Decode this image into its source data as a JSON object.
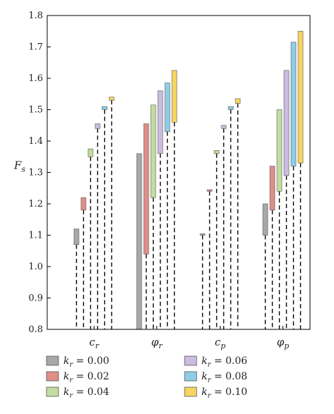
{
  "chart_data": {
    "type": "bar",
    "subtype": "floating-range-bars-with-dashed-drop-lines",
    "ylabel": "F_s",
    "ylim": [
      0.8,
      1.8
    ],
    "yticks": [
      "0.8",
      "0.9",
      "1.0",
      "1.1",
      "1.2",
      "1.3",
      "1.4",
      "1.5",
      "1.6",
      "1.7",
      "1.8"
    ],
    "grid": false,
    "legend_position": "bottom, two columns",
    "categories": [
      "c_r",
      "φ_r",
      "c_p",
      "φ_p"
    ],
    "category_labels": [
      {
        "main": "c",
        "sub": "r"
      },
      {
        "main": "φ",
        "sub": "r"
      },
      {
        "main": "c",
        "sub": "p"
      },
      {
        "main": "φ",
        "sub": "p"
      }
    ],
    "series": [
      {
        "name": "k_r = 0.00",
        "label_main": "k",
        "label_sub": "r",
        "label_value": " = 0.00",
        "color": "#a8a8a8",
        "ranges": [
          [
            1.07,
            1.12
          ],
          [
            0.8,
            1.36
          ],
          [
            1.1,
            1.1
          ],
          [
            1.1,
            1.2
          ]
        ]
      },
      {
        "name": "k_r = 0.02",
        "label_main": "k",
        "label_sub": "r",
        "label_value": " = 0.02",
        "color": "#e08e88",
        "ranges": [
          [
            1.18,
            1.22
          ],
          [
            1.04,
            1.455
          ],
          [
            1.24,
            1.245
          ],
          [
            1.18,
            1.32
          ]
        ]
      },
      {
        "name": "k_r = 0.04",
        "label_main": "k",
        "label_sub": "r",
        "label_value": " = 0.04",
        "color": "#c3dca1",
        "ranges": [
          [
            1.35,
            1.375
          ],
          [
            1.22,
            1.515
          ],
          [
            1.36,
            1.37
          ],
          [
            1.24,
            1.5
          ]
        ]
      },
      {
        "name": "k_r = 0.06",
        "label_main": "k",
        "label_sub": "r",
        "label_value": " = 0.06",
        "color": "#cbbce0",
        "ranges": [
          [
            1.44,
            1.455
          ],
          [
            1.36,
            1.56
          ],
          [
            1.44,
            1.45
          ],
          [
            1.29,
            1.625
          ]
        ]
      },
      {
        "name": "k_r = 0.08",
        "label_main": "k",
        "label_sub": "r",
        "label_value": " = 0.08",
        "color": "#8fcde6",
        "ranges": [
          [
            1.5,
            1.51
          ],
          [
            1.43,
            1.585
          ],
          [
            1.5,
            1.51
          ],
          [
            1.32,
            1.715
          ]
        ]
      },
      {
        "name": "k_r = 0.10",
        "label_main": "k",
        "label_sub": "r",
        "label_value": " = 0.10",
        "color": "#f6d560",
        "ranges": [
          [
            1.53,
            1.54
          ],
          [
            1.46,
            1.625
          ],
          [
            1.52,
            1.535
          ],
          [
            1.33,
            1.75
          ]
        ]
      }
    ]
  }
}
